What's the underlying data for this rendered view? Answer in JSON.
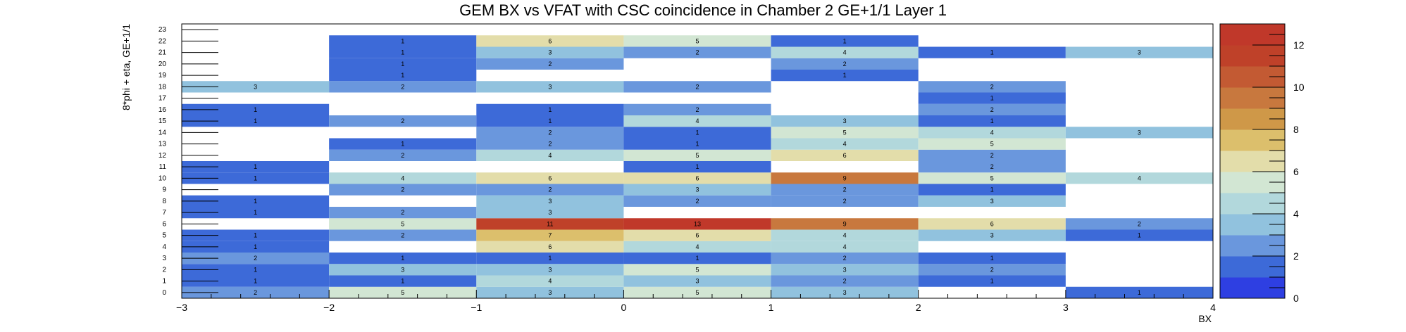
{
  "chart_data": {
    "type": "heatmap",
    "title": "GEM BX vs VFAT with CSC coincidence in Chamber 2 GE+1/1 Layer 1",
    "xlabel": "BX",
    "ylabel": "8*phi + eta, GE+1/1",
    "x_bins": [
      [
        -3,
        -2
      ],
      [
        -2,
        -1
      ],
      [
        -1,
        0
      ],
      [
        0,
        1
      ],
      [
        1,
        2
      ],
      [
        2,
        3
      ],
      [
        3,
        4
      ]
    ],
    "x_ticks": [
      "−3",
      "−2",
      "−1",
      "0",
      "1",
      "2",
      "3",
      "4"
    ],
    "y_ticks": [
      "0",
      "1",
      "2",
      "3",
      "4",
      "5",
      "6",
      "7",
      "8",
      "9",
      "10",
      "11",
      "12",
      "13",
      "14",
      "15",
      "16",
      "17",
      "18",
      "19",
      "20",
      "21",
      "22",
      "23"
    ],
    "zlim": [
      0,
      13
    ],
    "z_ticks": [
      "0",
      "2",
      "4",
      "6",
      "8",
      "10",
      "12"
    ],
    "cells": [
      {
        "y": 0,
        "x": -3,
        "v": 2
      },
      {
        "y": 0,
        "x": -2,
        "v": 5
      },
      {
        "y": 0,
        "x": -1,
        "v": 3
      },
      {
        "y": 0,
        "x": 0,
        "v": 5
      },
      {
        "y": 0,
        "x": 1,
        "v": 3
      },
      {
        "y": 0,
        "x": 3,
        "v": 1
      },
      {
        "y": 1,
        "x": -3,
        "v": 1
      },
      {
        "y": 1,
        "x": -2,
        "v": 1
      },
      {
        "y": 1,
        "x": -1,
        "v": 4
      },
      {
        "y": 1,
        "x": 0,
        "v": 3
      },
      {
        "y": 1,
        "x": 1,
        "v": 2
      },
      {
        "y": 1,
        "x": 2,
        "v": 1
      },
      {
        "y": 2,
        "x": -3,
        "v": 1
      },
      {
        "y": 2,
        "x": -2,
        "v": 3
      },
      {
        "y": 2,
        "x": -1,
        "v": 3
      },
      {
        "y": 2,
        "x": 0,
        "v": 5
      },
      {
        "y": 2,
        "x": 1,
        "v": 3
      },
      {
        "y": 2,
        "x": 2,
        "v": 2
      },
      {
        "y": 3,
        "x": -3,
        "v": 2
      },
      {
        "y": 3,
        "x": -2,
        "v": 1
      },
      {
        "y": 3,
        "x": -1,
        "v": 1
      },
      {
        "y": 3,
        "x": 0,
        "v": 1
      },
      {
        "y": 3,
        "x": 1,
        "v": 2
      },
      {
        "y": 3,
        "x": 2,
        "v": 1
      },
      {
        "y": 4,
        "x": -3,
        "v": 1
      },
      {
        "y": 4,
        "x": -1,
        "v": 6
      },
      {
        "y": 4,
        "x": 0,
        "v": 4
      },
      {
        "y": 4,
        "x": 1,
        "v": 4
      },
      {
        "y": 5,
        "x": -3,
        "v": 1
      },
      {
        "y": 5,
        "x": -2,
        "v": 2
      },
      {
        "y": 5,
        "x": -1,
        "v": 7
      },
      {
        "y": 5,
        "x": 0,
        "v": 6
      },
      {
        "y": 5,
        "x": 1,
        "v": 4
      },
      {
        "y": 5,
        "x": 2,
        "v": 3
      },
      {
        "y": 5,
        "x": 3,
        "v": 1
      },
      {
        "y": 6,
        "x": -2,
        "v": 5
      },
      {
        "y": 6,
        "x": -1,
        "v": 11
      },
      {
        "y": 6,
        "x": 0,
        "v": 13
      },
      {
        "y": 6,
        "x": 1,
        "v": 9
      },
      {
        "y": 6,
        "x": 2,
        "v": 6
      },
      {
        "y": 6,
        "x": 3,
        "v": 2
      },
      {
        "y": 7,
        "x": -3,
        "v": 1
      },
      {
        "y": 7,
        "x": -2,
        "v": 2
      },
      {
        "y": 7,
        "x": -1,
        "v": 3
      },
      {
        "y": 8,
        "x": -3,
        "v": 1
      },
      {
        "y": 8,
        "x": -1,
        "v": 3
      },
      {
        "y": 8,
        "x": 0,
        "v": 2
      },
      {
        "y": 8,
        "x": 1,
        "v": 2
      },
      {
        "y": 8,
        "x": 2,
        "v": 3
      },
      {
        "y": 9,
        "x": -2,
        "v": 2
      },
      {
        "y": 9,
        "x": -1,
        "v": 2
      },
      {
        "y": 9,
        "x": 0,
        "v": 3
      },
      {
        "y": 9,
        "x": 1,
        "v": 2
      },
      {
        "y": 9,
        "x": 2,
        "v": 1
      },
      {
        "y": 10,
        "x": -3,
        "v": 1
      },
      {
        "y": 10,
        "x": -2,
        "v": 4
      },
      {
        "y": 10,
        "x": -1,
        "v": 6
      },
      {
        "y": 10,
        "x": 0,
        "v": 6
      },
      {
        "y": 10,
        "x": 1,
        "v": 9
      },
      {
        "y": 10,
        "x": 2,
        "v": 5
      },
      {
        "y": 10,
        "x": 3,
        "v": 4
      },
      {
        "y": 11,
        "x": -3,
        "v": 1
      },
      {
        "y": 11,
        "x": 0,
        "v": 1
      },
      {
        "y": 11,
        "x": 2,
        "v": 2
      },
      {
        "y": 12,
        "x": -2,
        "v": 2
      },
      {
        "y": 12,
        "x": -1,
        "v": 4
      },
      {
        "y": 12,
        "x": 0,
        "v": 5
      },
      {
        "y": 12,
        "x": 1,
        "v": 6
      },
      {
        "y": 12,
        "x": 2,
        "v": 2
      },
      {
        "y": 13,
        "x": -2,
        "v": 1
      },
      {
        "y": 13,
        "x": -1,
        "v": 2
      },
      {
        "y": 13,
        "x": 0,
        "v": 1
      },
      {
        "y": 13,
        "x": 1,
        "v": 4
      },
      {
        "y": 13,
        "x": 2,
        "v": 5
      },
      {
        "y": 14,
        "x": -1,
        "v": 2
      },
      {
        "y": 14,
        "x": 0,
        "v": 1
      },
      {
        "y": 14,
        "x": 1,
        "v": 5
      },
      {
        "y": 14,
        "x": 2,
        "v": 4
      },
      {
        "y": 14,
        "x": 3,
        "v": 3
      },
      {
        "y": 15,
        "x": -3,
        "v": 1
      },
      {
        "y": 15,
        "x": -2,
        "v": 2
      },
      {
        "y": 15,
        "x": -1,
        "v": 1
      },
      {
        "y": 15,
        "x": 0,
        "v": 4
      },
      {
        "y": 15,
        "x": 1,
        "v": 3
      },
      {
        "y": 15,
        "x": 2,
        "v": 1
      },
      {
        "y": 16,
        "x": -3,
        "v": 1
      },
      {
        "y": 16,
        "x": -1,
        "v": 1
      },
      {
        "y": 16,
        "x": 0,
        "v": 2
      },
      {
        "y": 16,
        "x": 2,
        "v": 2
      },
      {
        "y": 17,
        "x": 2,
        "v": 1
      },
      {
        "y": 18,
        "x": -3,
        "v": 3
      },
      {
        "y": 18,
        "x": -2,
        "v": 2
      },
      {
        "y": 18,
        "x": -1,
        "v": 3
      },
      {
        "y": 18,
        "x": 0,
        "v": 2
      },
      {
        "y": 18,
        "x": 2,
        "v": 2
      },
      {
        "y": 19,
        "x": -2,
        "v": 1
      },
      {
        "y": 19,
        "x": 1,
        "v": 1
      },
      {
        "y": 20,
        "x": -2,
        "v": 1
      },
      {
        "y": 20,
        "x": -1,
        "v": 2
      },
      {
        "y": 20,
        "x": 1,
        "v": 2
      },
      {
        "y": 21,
        "x": -2,
        "v": 1
      },
      {
        "y": 21,
        "x": -1,
        "v": 3
      },
      {
        "y": 21,
        "x": 0,
        "v": 2
      },
      {
        "y": 21,
        "x": 1,
        "v": 4
      },
      {
        "y": 21,
        "x": 2,
        "v": 1
      },
      {
        "y": 21,
        "x": 3,
        "v": 3
      },
      {
        "y": 22,
        "x": -2,
        "v": 1
      },
      {
        "y": 22,
        "x": -1,
        "v": 6
      },
      {
        "y": 22,
        "x": 0,
        "v": 5
      },
      {
        "y": 22,
        "x": 1,
        "v": 1
      }
    ],
    "colormap": [
      "#2e3fe2",
      "#3d6ad8",
      "#6a97dd",
      "#91c2de",
      "#b2d8dc",
      "#d2e6d3",
      "#e3ddaa",
      "#dcbf6c",
      "#cf9848",
      "#c8783e",
      "#c35a33",
      "#bf4129",
      "#c0382a"
    ]
  }
}
